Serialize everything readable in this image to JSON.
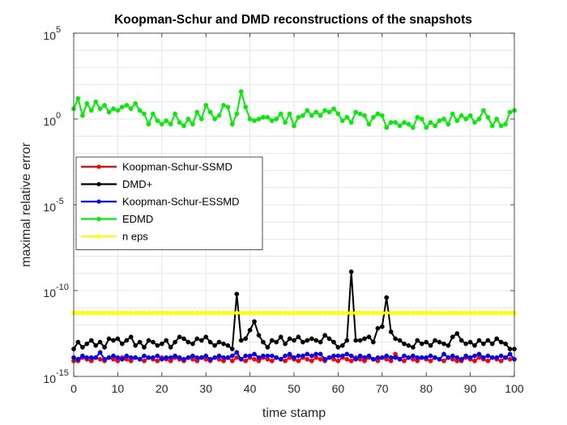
{
  "chart_data": {
    "type": "line",
    "title": "Koopman-Schur and DMD reconstructions of the snapshots",
    "xlabel": "time stamp",
    "ylabel": "maximal relative error",
    "xlim": [
      0,
      100
    ],
    "ylim_log10": [
      -15,
      5
    ],
    "xscale": "linear",
    "yscale": "log",
    "grid": true,
    "x_ticks": [
      0,
      10,
      20,
      30,
      40,
      50,
      60,
      70,
      80,
      90,
      100
    ],
    "x_tick_labels": [
      "0",
      "10",
      "20",
      "30",
      "40",
      "50",
      "60",
      "70",
      "80",
      "90",
      "100"
    ],
    "y_tick_exponents": [
      -15,
      -10,
      -5,
      0,
      5
    ],
    "y_tick_base": "10",
    "legend_position": "center-left",
    "series": [
      {
        "name": "Koopman-Schur-SSMD",
        "color": "#ff0000",
        "log10_values": [
          -14.1,
          -14.1,
          -13.9,
          -14.0,
          -14.1,
          -13.9,
          -14.0,
          -14.1,
          -13.9,
          -14.0,
          -14.1,
          -13.9,
          -14.0,
          -14.1,
          -13.9,
          -14.0,
          -14.1,
          -13.9,
          -14.0,
          -14.1,
          -13.9,
          -14.0,
          -14.1,
          -13.9,
          -14.0,
          -14.1,
          -13.9,
          -14.0,
          -14.1,
          -13.9,
          -14.0,
          -14.1,
          -13.9,
          -14.0,
          -14.1,
          -13.9,
          -14.1,
          -13.9,
          -14.0,
          -14.1,
          -13.9,
          -14.0,
          -14.1,
          -13.9,
          -14.0,
          -14.1,
          -13.9,
          -14.0,
          -14.1,
          -13.9,
          -14.0,
          -14.1,
          -13.9,
          -14.0,
          -14.1,
          -13.9,
          -14.0,
          -14.1,
          -13.9,
          -14.0,
          -14.1,
          -13.9,
          -14.0,
          -14.1,
          -13.9,
          -14.0,
          -14.1,
          -13.9,
          -14.0,
          -14.1,
          -13.9,
          -14.0,
          -14.1,
          -13.7,
          -14.0,
          -14.1,
          -13.9,
          -14.0,
          -14.1,
          -13.9,
          -14.0,
          -14.1,
          -13.9,
          -14.0,
          -14.1,
          -13.9,
          -14.0,
          -14.1,
          -14.1,
          -13.9,
          -14.0,
          -14.1,
          -13.9,
          -14.0,
          -14.1,
          -13.9,
          -14.0,
          -14.1,
          -13.9,
          -14.0
        ]
      },
      {
        "name": "DMD+",
        "color": "#000000",
        "log10_values": [
          -13.4,
          -13.0,
          -13.3,
          -13.1,
          -12.9,
          -13.2,
          -13.0,
          -13.3,
          -12.8,
          -12.9,
          -12.8,
          -13.1,
          -12.9,
          -12.7,
          -13.2,
          -13.0,
          -13.3,
          -12.9,
          -13.0,
          -13.2,
          -13.1,
          -12.9,
          -13.3,
          -13.0,
          -12.7,
          -12.8,
          -13.0,
          -13.1,
          -12.8,
          -12.9,
          -12.7,
          -13.0,
          -13.2,
          -13.0,
          -13.1,
          -13.2,
          -13.4,
          -10.2,
          -12.9,
          -12.8,
          -12.3,
          -11.8,
          -12.6,
          -13.0,
          -13.3,
          -12.9,
          -13.0,
          -12.7,
          -13.1,
          -12.8,
          -12.9,
          -12.7,
          -13.0,
          -12.9,
          -12.8,
          -12.9,
          -13.0,
          -12.6,
          -12.8,
          -13.0,
          -13.3,
          -13.2,
          -12.9,
          -8.9,
          -12.9,
          -12.9,
          -12.8,
          -12.7,
          -13.0,
          -12.2,
          -12.1,
          -10.4,
          -12.4,
          -12.8,
          -12.9,
          -13.1,
          -13.2,
          -13.3,
          -12.9,
          -13.1,
          -13.0,
          -13.2,
          -12.9,
          -13.0,
          -13.1,
          -13.2,
          -12.7,
          -12.5,
          -12.9,
          -13.1,
          -13.0,
          -13.2,
          -12.9,
          -13.1,
          -12.9,
          -13.1,
          -12.8,
          -13.0,
          -13.1,
          -13.4,
          -13.4
        ]
      },
      {
        "name": "Koopman-Schur-ESSMD",
        "color": "#0000ff",
        "log10_values": [
          -13.9,
          -14.0,
          -13.8,
          -13.9,
          -13.9,
          -13.9,
          -13.6,
          -14.0,
          -13.9,
          -13.8,
          -13.9,
          -14.0,
          -13.8,
          -13.9,
          -13.9,
          -14.0,
          -13.8,
          -13.9,
          -13.9,
          -13.8,
          -14.0,
          -13.9,
          -13.9,
          -13.8,
          -13.9,
          -14.0,
          -13.9,
          -13.8,
          -13.9,
          -13.9,
          -13.8,
          -14.0,
          -13.9,
          -13.8,
          -13.9,
          -13.9,
          -13.8,
          -13.6,
          -14.0,
          -13.8,
          -13.8,
          -13.7,
          -13.9,
          -13.8,
          -13.8,
          -13.8,
          -13.9,
          -14.0,
          -13.8,
          -13.7,
          -13.9,
          -13.8,
          -13.8,
          -13.7,
          -13.8,
          -13.7,
          -13.7,
          -14.0,
          -13.9,
          -13.8,
          -13.8,
          -13.8,
          -13.7,
          -13.8,
          -14.0,
          -13.8,
          -13.9,
          -13.8,
          -14.0,
          -13.9,
          -13.9,
          -13.8,
          -13.9,
          -13.9,
          -14.0,
          -13.8,
          -13.9,
          -13.8,
          -13.9,
          -13.9,
          -13.9,
          -13.8,
          -13.9,
          -14.0,
          -13.7,
          -13.9,
          -13.8,
          -13.9,
          -14.0,
          -13.8,
          -13.9,
          -13.8,
          -13.7,
          -13.9,
          -13.8,
          -13.9,
          -13.9,
          -13.8,
          -13.9,
          -13.7,
          -14.0
        ]
      },
      {
        "name": "EDMD",
        "color": "#00ee00",
        "log10_values": [
          0.6,
          1.2,
          0.2,
          0.9,
          0.5,
          1.0,
          0.6,
          0.8,
          0.4,
          0.6,
          0.5,
          0.7,
          0.8,
          0.6,
          0.9,
          0.5,
          0.3,
          -0.3,
          0.3,
          -0.1,
          -0.3,
          -0.1,
          -0.3,
          0.3,
          -0.2,
          -0.4,
          0.0,
          -0.3,
          0.4,
          0.0,
          0.8,
          0.4,
          0.0,
          0.2,
          0.8,
          0.7,
          -0.3,
          0.3,
          1.6,
          0.7,
          0.0,
          -0.1,
          0.0,
          0.1,
          0.1,
          -0.1,
          0.0,
          0.3,
          -0.2,
          0.3,
          -0.4,
          0.1,
          0.2,
          0.5,
          0.2,
          0.4,
          0.2,
          0.5,
          0.4,
          0.6,
          0.3,
          -0.1,
          0.1,
          -0.2,
          0.4,
          0.3,
          0.2,
          -0.3,
          0.1,
          0.3,
          0.2,
          -0.5,
          -0.2,
          -0.2,
          -0.4,
          -0.2,
          -0.3,
          -0.5,
          0.1,
          0.0,
          -0.5,
          -0.2,
          -0.4,
          -0.1,
          0.0,
          -0.3,
          0.3,
          -0.1,
          0.2,
          0.0,
          0.2,
          -0.2,
          0.0,
          0.5,
          0.1,
          -0.4,
          0.0,
          -0.4,
          -0.3,
          0.4,
          0.5
        ]
      },
      {
        "name": "n eps",
        "color": "#ffff00",
        "log10_values": [
          -11.3,
          -11.3,
          -11.3,
          -11.3,
          -11.3,
          -11.3,
          -11.3,
          -11.3,
          -11.3,
          -11.3,
          -11.3,
          -11.3,
          -11.3,
          -11.3,
          -11.3,
          -11.3,
          -11.3,
          -11.3,
          -11.3,
          -11.3,
          -11.3,
          -11.3,
          -11.3,
          -11.3,
          -11.3,
          -11.3,
          -11.3,
          -11.3,
          -11.3,
          -11.3,
          -11.3,
          -11.3,
          -11.3,
          -11.3,
          -11.3,
          -11.3,
          -11.3,
          -11.3,
          -11.3,
          -11.3,
          -11.3,
          -11.3,
          -11.3,
          -11.3,
          -11.3,
          -11.3,
          -11.3,
          -11.3,
          -11.3,
          -11.3,
          -11.3,
          -11.3,
          -11.3,
          -11.3,
          -11.3,
          -11.3,
          -11.3,
          -11.3,
          -11.3,
          -11.3,
          -11.3,
          -11.3,
          -11.3,
          -11.3,
          -11.3,
          -11.3,
          -11.3,
          -11.3,
          -11.3,
          -11.3,
          -11.3,
          -11.3,
          -11.3,
          -11.3,
          -11.3,
          -11.3,
          -11.3,
          -11.3,
          -11.3,
          -11.3,
          -11.3,
          -11.3,
          -11.3,
          -11.3,
          -11.3,
          -11.3,
          -11.3,
          -11.3,
          -11.3,
          -11.3,
          -11.3,
          -11.3,
          -11.3,
          -11.3,
          -11.3,
          -11.3,
          -11.3,
          -11.3,
          -11.3,
          -11.3,
          -11.3
        ]
      }
    ]
  }
}
